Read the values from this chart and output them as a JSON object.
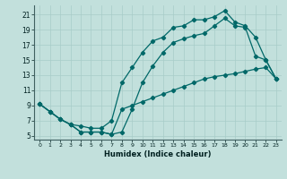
{
  "xlabel": "Humidex (Indice chaleur)",
  "bg_color": "#c2e0dc",
  "line_color": "#006868",
  "grid_color": "#a8ccc8",
  "xlim": [
    -0.5,
    23.5
  ],
  "ylim": [
    4.5,
    22.2
  ],
  "xticks": [
    0,
    1,
    2,
    3,
    4,
    5,
    6,
    7,
    8,
    9,
    10,
    11,
    12,
    13,
    14,
    15,
    16,
    17,
    18,
    19,
    20,
    21,
    22,
    23
  ],
  "yticks": [
    5,
    7,
    9,
    11,
    13,
    15,
    17,
    19,
    21
  ],
  "curve1_x": [
    0,
    1,
    2,
    3,
    4,
    5,
    6,
    7,
    8,
    9,
    10,
    11,
    12,
    13,
    14,
    15,
    16,
    17,
    18,
    19,
    20,
    21,
    22,
    23
  ],
  "curve1_y": [
    9.2,
    8.2,
    7.2,
    6.5,
    6.3,
    6.0,
    6.0,
    7.0,
    12.0,
    14.0,
    16.0,
    17.5,
    18.0,
    19.3,
    19.5,
    20.3,
    20.3,
    20.7,
    21.5,
    20.0,
    19.5,
    18.0,
    15.0,
    12.5
  ],
  "curve2_x": [
    0,
    1,
    2,
    3,
    4,
    5,
    6,
    7,
    8,
    9,
    10,
    11,
    12,
    13,
    14,
    15,
    16,
    17,
    18,
    19,
    20,
    21,
    22,
    23
  ],
  "curve2_y": [
    9.2,
    8.2,
    7.2,
    6.5,
    5.5,
    5.5,
    5.5,
    5.2,
    5.5,
    8.5,
    12.0,
    14.2,
    16.0,
    17.3,
    17.8,
    18.2,
    18.5,
    19.5,
    20.5,
    19.5,
    19.3,
    15.5,
    15.0,
    12.5
  ],
  "curve3_x": [
    0,
    1,
    2,
    3,
    4,
    5,
    6,
    7,
    8,
    9,
    10,
    11,
    12,
    13,
    14,
    15,
    16,
    17,
    18,
    19,
    20,
    21,
    22,
    23
  ],
  "curve3_y": [
    9.2,
    8.2,
    7.2,
    6.5,
    5.5,
    5.5,
    5.5,
    5.2,
    8.5,
    9.0,
    9.5,
    10.0,
    10.5,
    11.0,
    11.5,
    12.0,
    12.5,
    12.8,
    13.0,
    13.2,
    13.5,
    13.8,
    14.0,
    12.5
  ]
}
